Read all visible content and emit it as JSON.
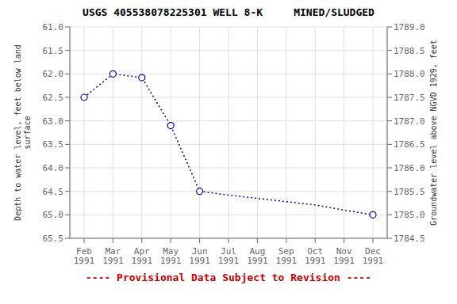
{
  "chart_data": {
    "type": "line",
    "title": "USGS 405538078225301 WELL 8-K     MINED/SLUDGED",
    "categories": [
      "Feb\n1991",
      "Mar\n1991",
      "Apr\n1991",
      "May\n1991",
      "Jun\n1991",
      "Jul\n1991",
      "Aug\n1991",
      "Sep\n1991",
      "Oct\n1991",
      "Nov\n1991",
      "Dec\n1991"
    ],
    "series": [
      {
        "values": [
          62.5,
          62.0,
          62.08,
          63.1,
          64.5,
          64.58,
          64.65,
          64.72,
          64.79,
          64.9,
          65.0
        ],
        "color": "#0000BB",
        "line_style": "dotted",
        "marker": "none"
      },
      {
        "values": [
          62.5,
          62.0,
          62.08,
          63.1,
          64.5,
          null,
          null,
          null,
          null,
          null,
          65.0
        ],
        "color": "#0000BB",
        "line_style": "none",
        "marker": "circle"
      }
    ],
    "ylabel": "Depth to water level, feet below land\nsurface",
    "y2label": "Groundwater level above NGVD 1929, feet",
    "ylim": [
      65.5,
      61.0
    ],
    "yticks": [
      {
        "value": 61.0,
        "label": "61.0"
      },
      61.5,
      {
        "value": 62.0,
        "label": "62.0"
      },
      62.5,
      {
        "value": 63.0,
        "label": "63.0"
      },
      63.5,
      {
        "value": 64.0,
        "label": "64.0"
      },
      64.5,
      {
        "value": 65.0,
        "label": "65.0"
      },
      65.5
    ],
    "y2lim": [
      1784.5,
      1789.0
    ],
    "y2ticks": [
      1784.5,
      {
        "value": 1785.0,
        "label": "1785.0"
      },
      1785.5,
      {
        "value": 1786.0,
        "label": "1786.0"
      },
      1786.5,
      {
        "value": 1787.0,
        "label": "1787.0"
      },
      1787.5,
      {
        "value": 1788.0,
        "label": "1788.0"
      },
      1788.5,
      {
        "value": 1789.0,
        "label": "1789.0"
      }
    ],
    "grid": true,
    "annotations": [
      {
        "text": "---- Provisional Data Subject to Revision ----",
        "color": "#CC0000"
      }
    ]
  }
}
